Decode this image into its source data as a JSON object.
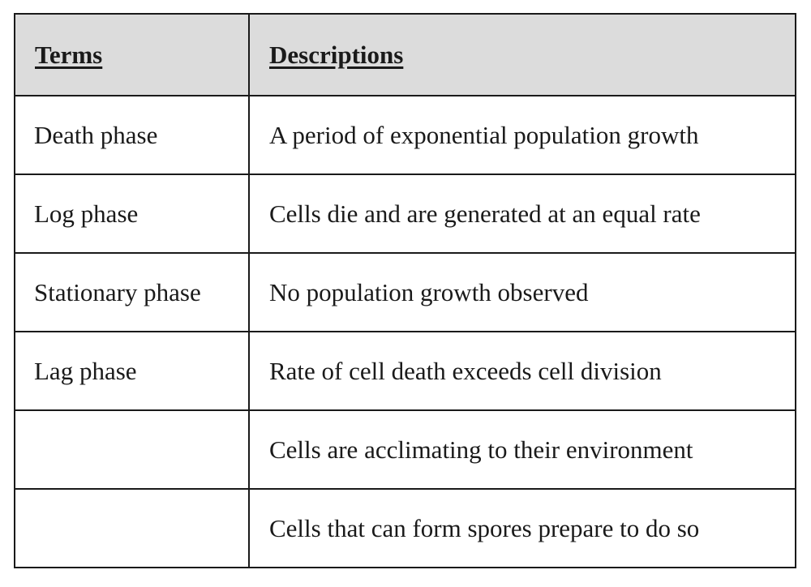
{
  "table": {
    "headers": [
      "Terms",
      "Descriptions"
    ],
    "rows": [
      {
        "term": "Death phase",
        "description": "A period of exponential population growth"
      },
      {
        "term": "Log phase",
        "description": "Cells die and are generated at an equal rate"
      },
      {
        "term": "Stationary phase",
        "description": "No population growth observed"
      },
      {
        "term": "Lag phase",
        "description": "Rate of cell death exceeds cell division"
      },
      {
        "term": "",
        "description": "Cells are acclimating to their environment"
      },
      {
        "term": "",
        "description": "Cells that can form spores prepare to do so"
      }
    ]
  }
}
